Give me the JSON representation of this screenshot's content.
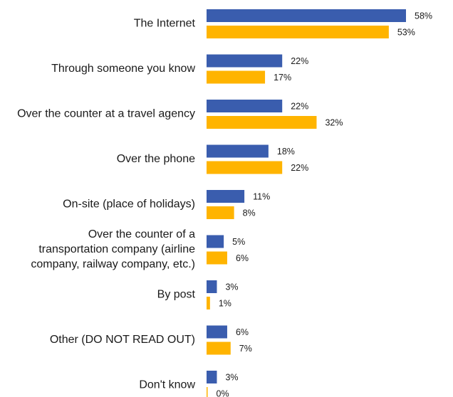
{
  "chart_data": {
    "type": "bar",
    "orientation": "horizontal",
    "categories": [
      [
        "The Internet"
      ],
      [
        "Through someone you know"
      ],
      [
        "Over the counter at a travel agency"
      ],
      [
        "Over the phone"
      ],
      [
        "On-site (place of holidays)"
      ],
      [
        "Over the counter of a",
        "transportation company (airline",
        "company, railway company, etc.)"
      ],
      [
        "By post"
      ],
      [
        "Other (DO NOT READ OUT)"
      ],
      [
        "Don't know"
      ]
    ],
    "series": [
      {
        "color": "#3A5DAE",
        "values": [
          58,
          22,
          22,
          18,
          11,
          5,
          3,
          6,
          3
        ],
        "labels": [
          "58%",
          "22%",
          "22%",
          "18%",
          "11%",
          "5%",
          "3%",
          "6%",
          "3%"
        ]
      },
      {
        "color": "#FFB400",
        "values": [
          53,
          17,
          32,
          22,
          8,
          6,
          1,
          7,
          0
        ],
        "labels": [
          "53%",
          "17%",
          "32%",
          "22%",
          "8%",
          "6%",
          "1%",
          "7%",
          "0%"
        ]
      }
    ],
    "xlim": [
      0,
      60
    ],
    "grid": false,
    "legend": "none"
  }
}
